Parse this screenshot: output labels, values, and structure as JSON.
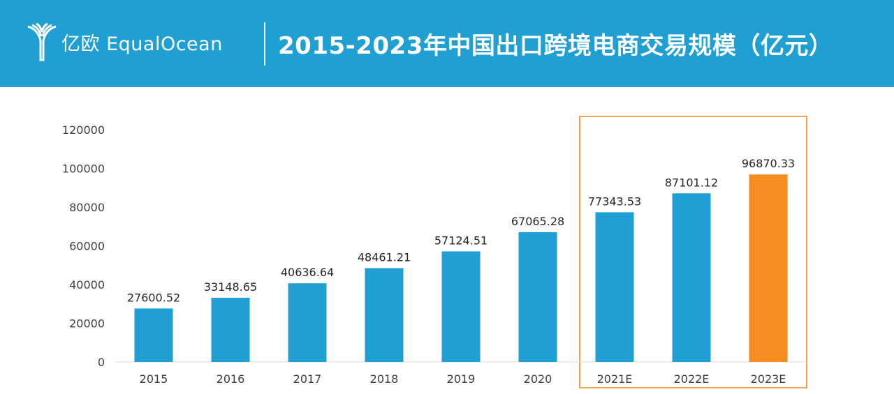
{
  "header": {
    "logo_text": "亿欧 EqualOcean",
    "title": "2015-2023年中国出口跨境电商交易规模（亿元）"
  },
  "colors": {
    "header_bg": "#209fd3",
    "bar": "#1f9fd4",
    "bar_highlight": "#f58d22",
    "highlight_box": "#f5a04a",
    "axis": "#d9d9d9"
  },
  "chart_data": {
    "type": "bar",
    "title": "2015-2023年中国出口跨境电商交易规模（亿元）",
    "categories": [
      "2015",
      "2016",
      "2017",
      "2018",
      "2019",
      "2020",
      "2021E",
      "2022E",
      "2023E"
    ],
    "values": [
      27600.52,
      33148.65,
      40636.64,
      48461.21,
      57124.51,
      67065.28,
      77343.53,
      87101.12,
      96870.33
    ],
    "value_labels": [
      "27600.52",
      "33148.65",
      "40636.64",
      "48461.21",
      "57124.51",
      "67065.28",
      "77343.53",
      "87101.12",
      "96870.33"
    ],
    "yticks": [
      "0",
      "20000",
      "40000",
      "60000",
      "80000",
      "100000",
      "120000"
    ],
    "ylim": [
      0,
      120000
    ],
    "xlabel": "",
    "ylabel": "",
    "grid": false,
    "legend": "none",
    "highlighted_categories": [
      "2021E",
      "2022E",
      "2023E"
    ],
    "emphasized_category": "2023E"
  }
}
